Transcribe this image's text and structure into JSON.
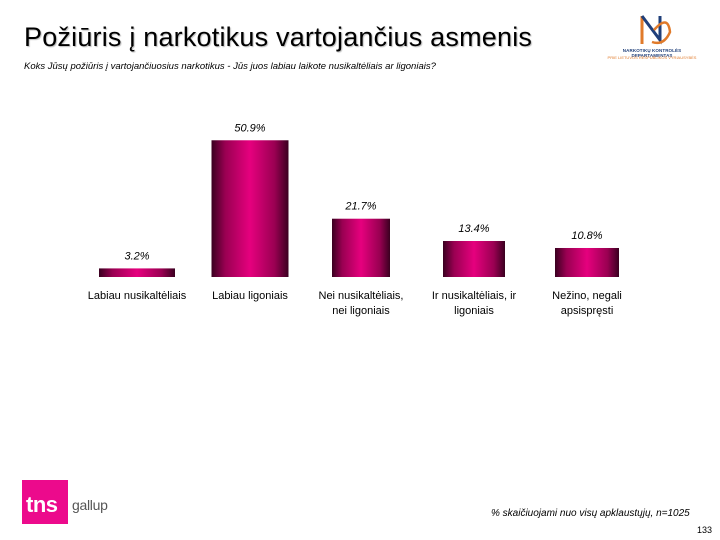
{
  "header": {
    "title": "Požiūris į narkotikus vartojančius asmenis",
    "subtitle": "Koks Jūsų požiūris į vartojančiuosius narkotikus - Jūs juos labiau laikote nusikaltėliais ar ligoniais?"
  },
  "ndk_logo": {
    "line1": "NARKOTIKŲ KONTROLĖS DEPARTAMENTAS",
    "line2": "PRIE LIETUVOS RESPUBLIKOS VYRIAUSYBĖS"
  },
  "footer": {
    "brand_tns": "tns",
    "brand_gallup": "gallup",
    "note": "% skaičiuojami nuo visų apklaustųjų, n=1025",
    "page_number": "133"
  },
  "colors": {
    "bar_main": "#e6007e",
    "bar_dark": "#3a0020",
    "tns_brand": "#ec0a8c"
  },
  "chart_data": {
    "type": "bar",
    "title": "",
    "xlabel": "",
    "ylabel": "",
    "categories": [
      [
        "Labiau nusikaltėliais"
      ],
      [
        "Labiau ligoniais"
      ],
      [
        "Nei nusikaltėliais,",
        "nei ligoniais"
      ],
      [
        "Ir nusikaltėliais, ir",
        "ligoniais"
      ],
      [
        "Nežino, negali",
        "apsispręsti"
      ]
    ],
    "values": [
      3.2,
      50.9,
      21.7,
      13.4,
      10.8
    ],
    "value_labels": [
      "3.2%",
      "50.9%",
      "21.7%",
      "13.4%",
      "10.8%"
    ],
    "ylim": [
      0,
      55
    ],
    "grid": false,
    "legend": "none"
  }
}
